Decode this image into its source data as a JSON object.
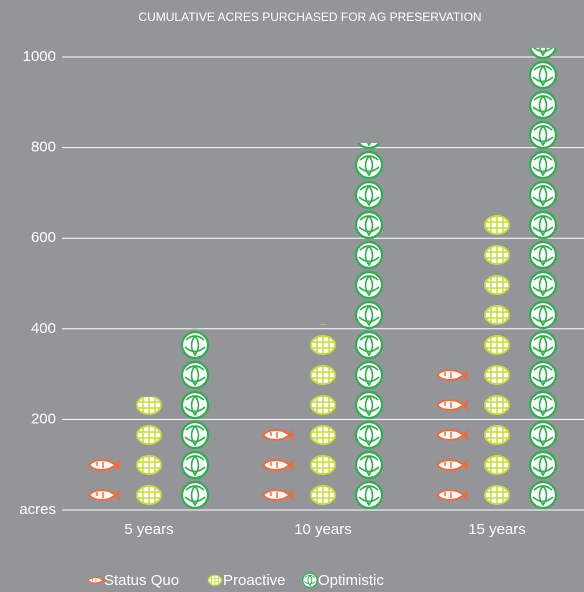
{
  "chart_data": {
    "type": "pictograph",
    "title": "CUMULATIVE ACRES PURCHASED FOR AG PRESERVATION",
    "categories": [
      "5 years",
      "10 years",
      "15 years"
    ],
    "series": [
      {
        "name": "Status Quo",
        "color": "#f26b3a",
        "values": [
          130,
          200,
          330
        ]
      },
      {
        "name": "Proactive",
        "color": "#c9dc3c",
        "values": [
          250,
          410,
          660
        ]
      },
      {
        "name": "Optimistic",
        "color": "#2fae4e",
        "values": [
          400,
          810,
          1020
        ]
      }
    ],
    "ylim": [
      0,
      1000
    ],
    "yticks": [
      {
        "value": 0,
        "label": "acres"
      },
      200,
      400,
      600,
      800,
      1000
    ],
    "grid": true,
    "legend": "bottom"
  }
}
